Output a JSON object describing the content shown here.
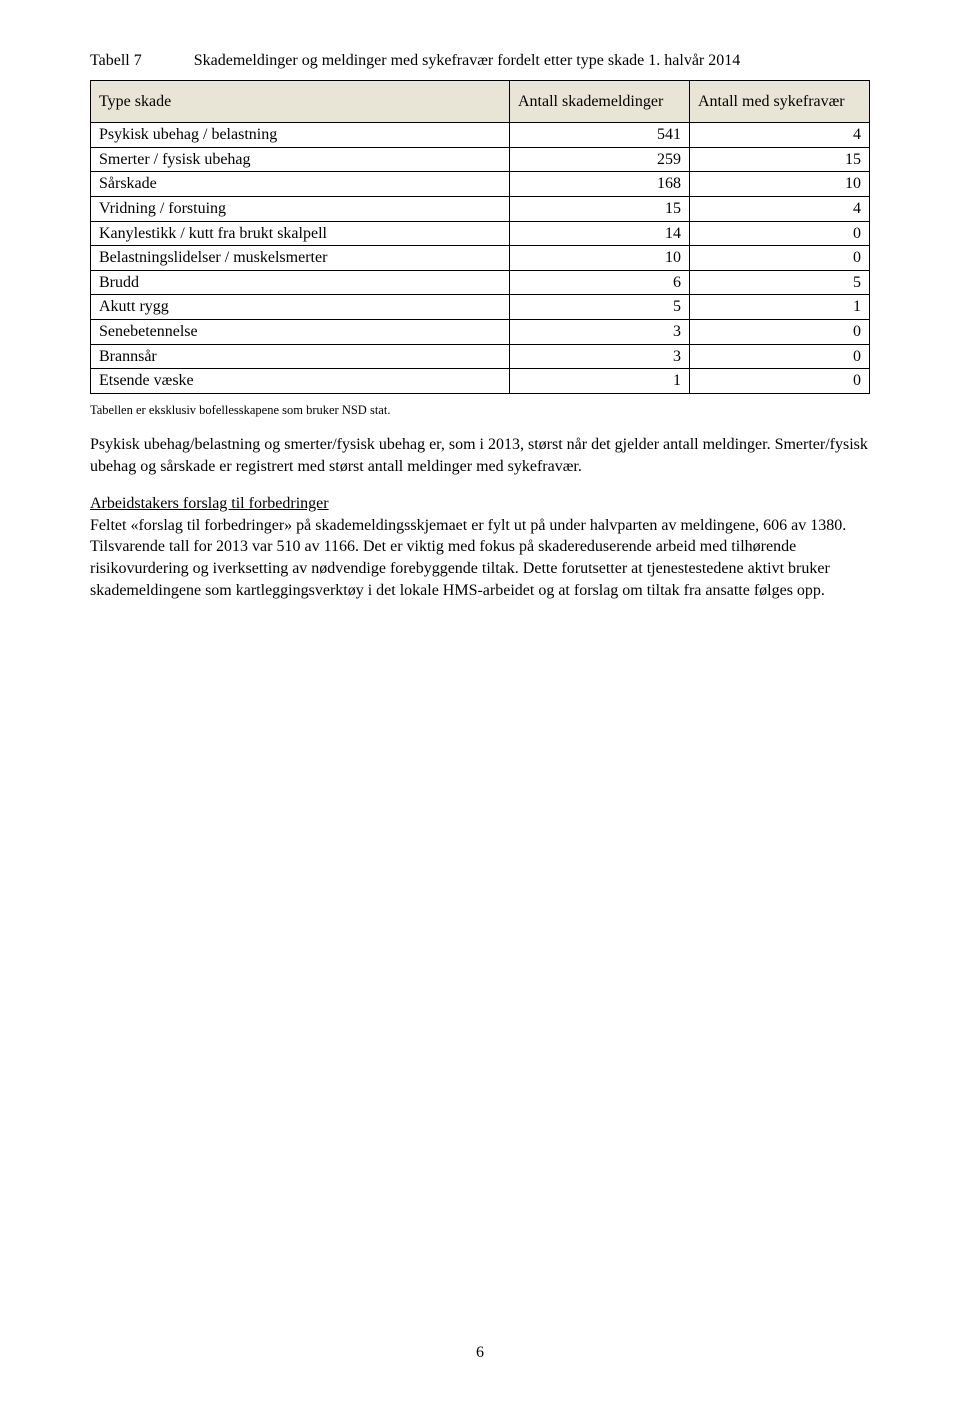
{
  "caption": {
    "label": "Tabell 7",
    "text": "Skademeldinger og meldinger med sykefravær fordelt etter type skade 1. halvår 2014"
  },
  "table": {
    "columns": [
      "Type skade",
      "Antall skademeldinger",
      "Antall med sykefravær"
    ],
    "rows": [
      [
        "Psykisk ubehag / belastning",
        "541",
        "4"
      ],
      [
        "Smerter / fysisk ubehag",
        "259",
        "15"
      ],
      [
        "Sårskade",
        "168",
        "10"
      ],
      [
        "Vridning / forstuing",
        "15",
        "4"
      ],
      [
        "Kanylestikk / kutt fra brukt skalpell",
        "14",
        "0"
      ],
      [
        "Belastningslidelser / muskelsmerter",
        "10",
        "0"
      ],
      [
        "Brudd",
        "6",
        "5"
      ],
      [
        "Akutt rygg",
        "5",
        "1"
      ],
      [
        "Senebetennelse",
        "3",
        "0"
      ],
      [
        "Brannsår",
        "3",
        "0"
      ],
      [
        "Etsende væske",
        "1",
        "0"
      ]
    ],
    "header_bg": "#e8e5d6",
    "border_color": "#000000"
  },
  "note": "Tabellen er eksklusiv bofellesskapene som bruker NSD stat.",
  "para1": "Psykisk ubehag/belastning og smerter/fysisk ubehag er, som i 2013, størst når det gjelder antall meldinger. Smerter/fysisk ubehag og sårskade er registrert med størst antall meldinger med sykefravær.",
  "para2_heading": "Arbeidstakers forslag til forbedringer",
  "para2": "Feltet «forslag til forbedringer» på skademeldingsskjemaet er fylt ut på under halvparten av meldingene, 606 av 1380. Tilsvarende tall for 2013 var 510 av 1166. Det er viktig med fokus på skadereduserende arbeid med tilhørende risikovurdering og iverksetting av nødvendige forebyggende tiltak. Dette forutsetter at tjenestestedene aktivt bruker skademeldingene som kartleggingsverktøy i det lokale HMS-arbeidet og at forslag om tiltak fra ansatte følges opp.",
  "page_number": "6"
}
